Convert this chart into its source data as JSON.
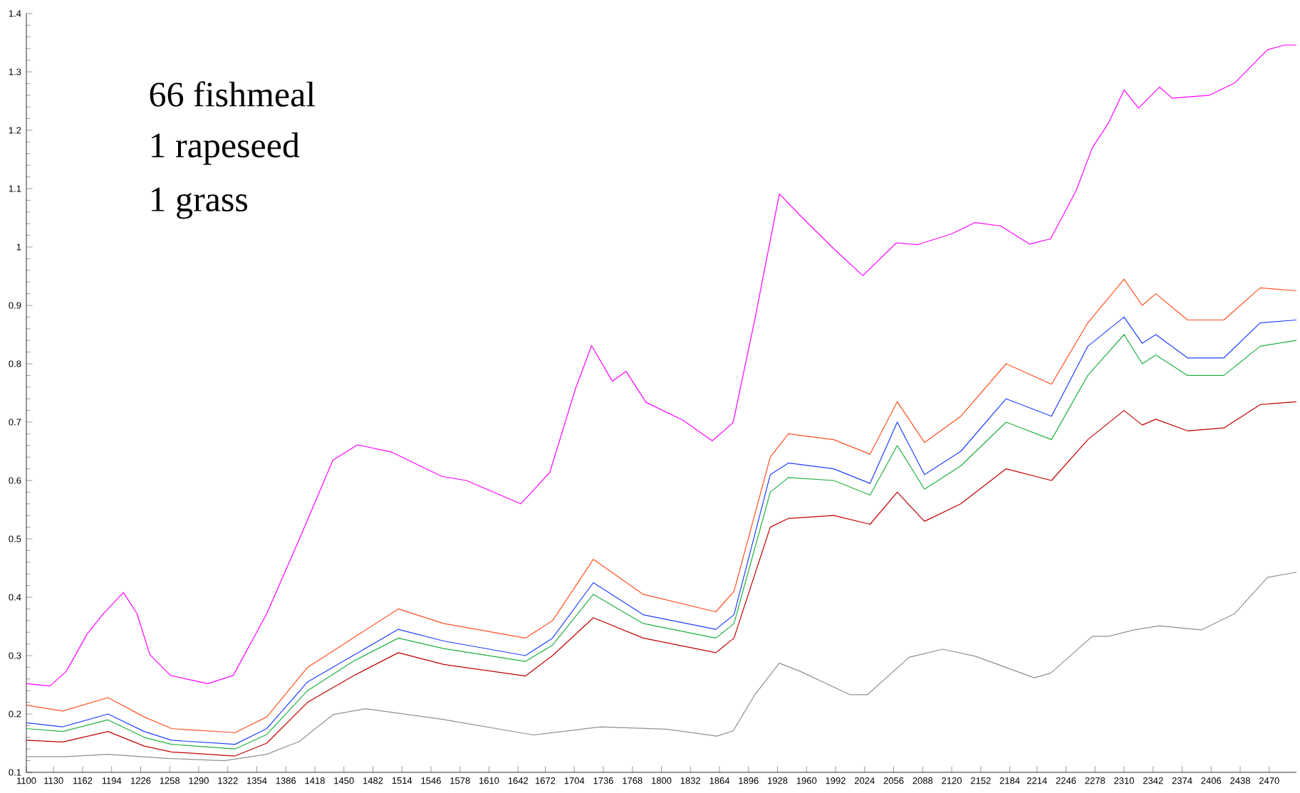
{
  "chart_data": {
    "type": "line",
    "annotations": [
      "66 fishmeal",
      "1 rapeseed",
      "1 grass"
    ],
    "xlim": [
      1100,
      2500
    ],
    "xticks": [
      1100,
      1130,
      1162,
      1194,
      1226,
      1258,
      1290,
      1322,
      1354,
      1386,
      1418,
      1450,
      1482,
      1514,
      1546,
      1578,
      1610,
      1642,
      1672,
      1704,
      1736,
      1768,
      1800,
      1832,
      1864,
      1896,
      1928,
      1960,
      1992,
      2024,
      2056,
      2088,
      2120,
      2152,
      2184,
      2214,
      2246,
      2278,
      2310,
      2342,
      2374,
      2406,
      2438,
      2470
    ],
    "ylim": [
      0.1,
      1.4
    ],
    "yticks": [
      0.1,
      0.2,
      0.3,
      0.4,
      0.5,
      0.6,
      0.7,
      0.8,
      0.9,
      1,
      1.1,
      1.2,
      1.3,
      1.4
    ],
    "marker": "none",
    "line_style": "solid",
    "series": [
      {
        "color": "#ff00ff",
        "x": [
          1100,
          1126,
          1144,
          1167,
          1185,
          1207,
          1222,
          1236,
          1259,
          1300,
          1328,
          1365,
          1401,
          1438,
          1465,
          1502,
          1558,
          1585,
          1645,
          1677,
          1705,
          1723,
          1746,
          1761,
          1783,
          1824,
          1856,
          1879,
          1903,
          1930,
          1953,
          1990,
          2022,
          2059,
          2082,
          2119,
          2146,
          2174,
          2206,
          2229,
          2257,
          2275,
          2293,
          2310,
          2326,
          2349,
          2363,
          2404,
          2432,
          2468,
          2487,
          2500
        ],
        "values": [
          0.252,
          0.248,
          0.273,
          0.337,
          0.372,
          0.408,
          0.372,
          0.302,
          0.266,
          0.252,
          0.266,
          0.372,
          0.5,
          0.635,
          0.661,
          0.649,
          0.607,
          0.6,
          0.56,
          0.614,
          0.756,
          0.831,
          0.77,
          0.787,
          0.734,
          0.703,
          0.668,
          0.699,
          0.876,
          1.091,
          1.054,
          0.997,
          0.951,
          1.007,
          1.004,
          1.022,
          1.042,
          1.036,
          1.005,
          1.014,
          1.096,
          1.17,
          1.213,
          1.269,
          1.238,
          1.274,
          1.255,
          1.26,
          1.281,
          1.338,
          1.346,
          1.346
        ]
      },
      {
        "color": "#909090",
        "x": [
          1100,
          1144,
          1190,
          1254,
          1318,
          1365,
          1401,
          1438,
          1474,
          1558,
          1659,
          1733,
          1806,
          1861,
          1879,
          1903,
          1930,
          1953,
          2008,
          2027,
          2073,
          2110,
          2146,
          2211,
          2229,
          2275,
          2293,
          2321,
          2349,
          2395,
          2432,
          2468,
          2500
        ],
        "values": [
          0.127,
          0.127,
          0.131,
          0.124,
          0.12,
          0.131,
          0.153,
          0.199,
          0.209,
          0.191,
          0.164,
          0.178,
          0.174,
          0.162,
          0.171,
          0.233,
          0.287,
          0.273,
          0.233,
          0.233,
          0.297,
          0.311,
          0.299,
          0.262,
          0.27,
          0.333,
          0.333,
          0.344,
          0.351,
          0.344,
          0.372,
          0.434,
          0.443
        ]
      },
      {
        "color": "#ff5020",
        "x": [
          1100,
          1140,
          1190,
          1230,
          1260,
          1330,
          1365,
          1410,
          1460,
          1510,
          1560,
          1650,
          1680,
          1725,
          1780,
          1860,
          1880,
          1920,
          1940,
          1990,
          2030,
          2060,
          2090,
          2130,
          2180,
          2230,
          2270,
          2310,
          2330,
          2345,
          2380,
          2420,
          2460,
          2500
        ],
        "values": [
          0.215,
          0.205,
          0.228,
          0.195,
          0.175,
          0.168,
          0.195,
          0.28,
          0.33,
          0.38,
          0.355,
          0.33,
          0.36,
          0.465,
          0.405,
          0.375,
          0.41,
          0.64,
          0.68,
          0.67,
          0.645,
          0.735,
          0.665,
          0.71,
          0.8,
          0.765,
          0.87,
          0.945,
          0.9,
          0.92,
          0.875,
          0.875,
          0.93,
          0.925
        ]
      },
      {
        "color": "#2040ff",
        "x": [
          1100,
          1140,
          1190,
          1230,
          1260,
          1330,
          1365,
          1410,
          1460,
          1510,
          1560,
          1650,
          1680,
          1725,
          1780,
          1860,
          1880,
          1920,
          1940,
          1990,
          2030,
          2060,
          2090,
          2130,
          2180,
          2230,
          2270,
          2310,
          2330,
          2345,
          2380,
          2420,
          2460,
          2500
        ],
        "values": [
          0.185,
          0.178,
          0.2,
          0.17,
          0.155,
          0.148,
          0.175,
          0.255,
          0.3,
          0.345,
          0.325,
          0.3,
          0.33,
          0.425,
          0.37,
          0.345,
          0.37,
          0.61,
          0.63,
          0.62,
          0.595,
          0.7,
          0.61,
          0.65,
          0.74,
          0.71,
          0.83,
          0.88,
          0.835,
          0.85,
          0.81,
          0.81,
          0.87,
          0.875
        ]
      },
      {
        "color": "#20b040",
        "x": [
          1100,
          1140,
          1190,
          1230,
          1260,
          1330,
          1365,
          1410,
          1460,
          1510,
          1560,
          1650,
          1680,
          1725,
          1780,
          1860,
          1880,
          1920,
          1940,
          1990,
          2030,
          2060,
          2090,
          2130,
          2180,
          2230,
          2270,
          2310,
          2330,
          2345,
          2380,
          2420,
          2460,
          2500
        ],
        "values": [
          0.175,
          0.17,
          0.19,
          0.16,
          0.148,
          0.14,
          0.165,
          0.24,
          0.29,
          0.33,
          0.312,
          0.29,
          0.318,
          0.405,
          0.355,
          0.33,
          0.355,
          0.58,
          0.605,
          0.6,
          0.575,
          0.66,
          0.585,
          0.625,
          0.7,
          0.67,
          0.78,
          0.85,
          0.8,
          0.815,
          0.78,
          0.78,
          0.83,
          0.84
        ]
      },
      {
        "color": "#c00000",
        "x": [
          1100,
          1140,
          1190,
          1230,
          1260,
          1330,
          1365,
          1410,
          1460,
          1510,
          1560,
          1650,
          1680,
          1725,
          1780,
          1860,
          1880,
          1920,
          1940,
          1990,
          2030,
          2060,
          2090,
          2130,
          2180,
          2230,
          2270,
          2310,
          2330,
          2345,
          2380,
          2420,
          2460,
          2500
        ],
        "values": [
          0.155,
          0.152,
          0.17,
          0.145,
          0.135,
          0.128,
          0.15,
          0.22,
          0.265,
          0.305,
          0.285,
          0.265,
          0.3,
          0.365,
          0.33,
          0.305,
          0.33,
          0.52,
          0.535,
          0.54,
          0.525,
          0.58,
          0.53,
          0.56,
          0.62,
          0.6,
          0.67,
          0.72,
          0.695,
          0.705,
          0.685,
          0.69,
          0.73,
          0.735
        ]
      }
    ]
  }
}
